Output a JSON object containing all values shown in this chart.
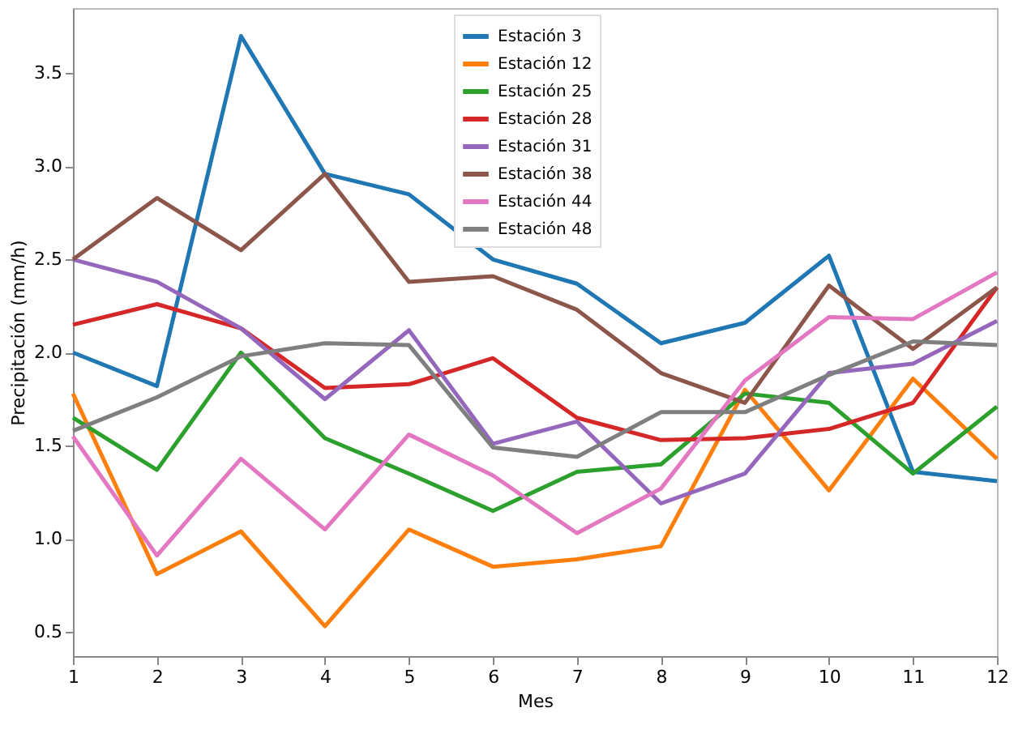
{
  "chart_data": {
    "type": "line",
    "xlabel": "Mes",
    "ylabel": "Precipitación (mm/h)",
    "x": [
      1,
      2,
      3,
      4,
      5,
      6,
      7,
      8,
      9,
      10,
      11,
      12
    ],
    "xlim": [
      1,
      12
    ],
    "xticks": [
      1,
      2,
      3,
      4,
      5,
      6,
      7,
      8,
      9,
      10,
      11,
      12
    ],
    "ylim": [
      0.37,
      3.85
    ],
    "yticks": [
      0.5,
      {
        "value": 1,
        "label": "1.0"
      },
      1.5,
      {
        "value": 2,
        "label": "2.0"
      },
      2.5,
      {
        "value": 3,
        "label": "3.0"
      },
      3.5
    ],
    "grid": false,
    "legend": "top",
    "marker": "none",
    "line_style": "solid",
    "series": [
      {
        "name": "Estación 3",
        "color": "#1f77b4",
        "values": [
          2.0,
          1.82,
          3.7,
          2.96,
          2.85,
          2.5,
          2.37,
          2.05,
          2.16,
          2.52,
          1.36,
          1.31
        ]
      },
      {
        "name": "Estación 12",
        "color": "#ff7f0e",
        "values": [
          1.78,
          0.81,
          1.04,
          0.53,
          1.05,
          0.85,
          0.89,
          0.96,
          1.8,
          1.26,
          1.86,
          1.43
        ]
      },
      {
        "name": "Estación 25",
        "color": "#2ca02c",
        "values": [
          1.65,
          1.37,
          2.0,
          1.54,
          1.35,
          1.15,
          1.36,
          1.4,
          1.78,
          1.73,
          1.35,
          1.71
        ]
      },
      {
        "name": "Estación 28",
        "color": "#d62728",
        "values": [
          2.15,
          2.26,
          2.13,
          1.81,
          1.83,
          1.97,
          1.65,
          1.53,
          1.54,
          1.59,
          1.73,
          2.35
        ]
      },
      {
        "name": "Estación 31",
        "color": "#9467bd",
        "values": [
          2.5,
          2.38,
          2.13,
          1.75,
          2.12,
          1.51,
          1.63,
          1.19,
          1.35,
          1.89,
          1.94,
          2.17
        ]
      },
      {
        "name": "Estación 38",
        "color": "#8c564b",
        "values": [
          2.5,
          2.83,
          2.55,
          2.96,
          2.38,
          2.41,
          2.23,
          1.89,
          1.73,
          2.36,
          2.02,
          2.35
        ]
      },
      {
        "name": "Estación 44",
        "color": "#e377c2",
        "values": [
          1.55,
          0.91,
          1.43,
          1.05,
          1.56,
          1.34,
          1.03,
          1.27,
          1.85,
          2.19,
          2.18,
          2.43
        ]
      },
      {
        "name": "Estación 48",
        "color": "#7f7f7f",
        "values": [
          1.58,
          1.76,
          1.98,
          2.05,
          2.04,
          1.49,
          1.44,
          1.68,
          1.68,
          1.88,
          2.06,
          2.04
        ]
      }
    ]
  }
}
